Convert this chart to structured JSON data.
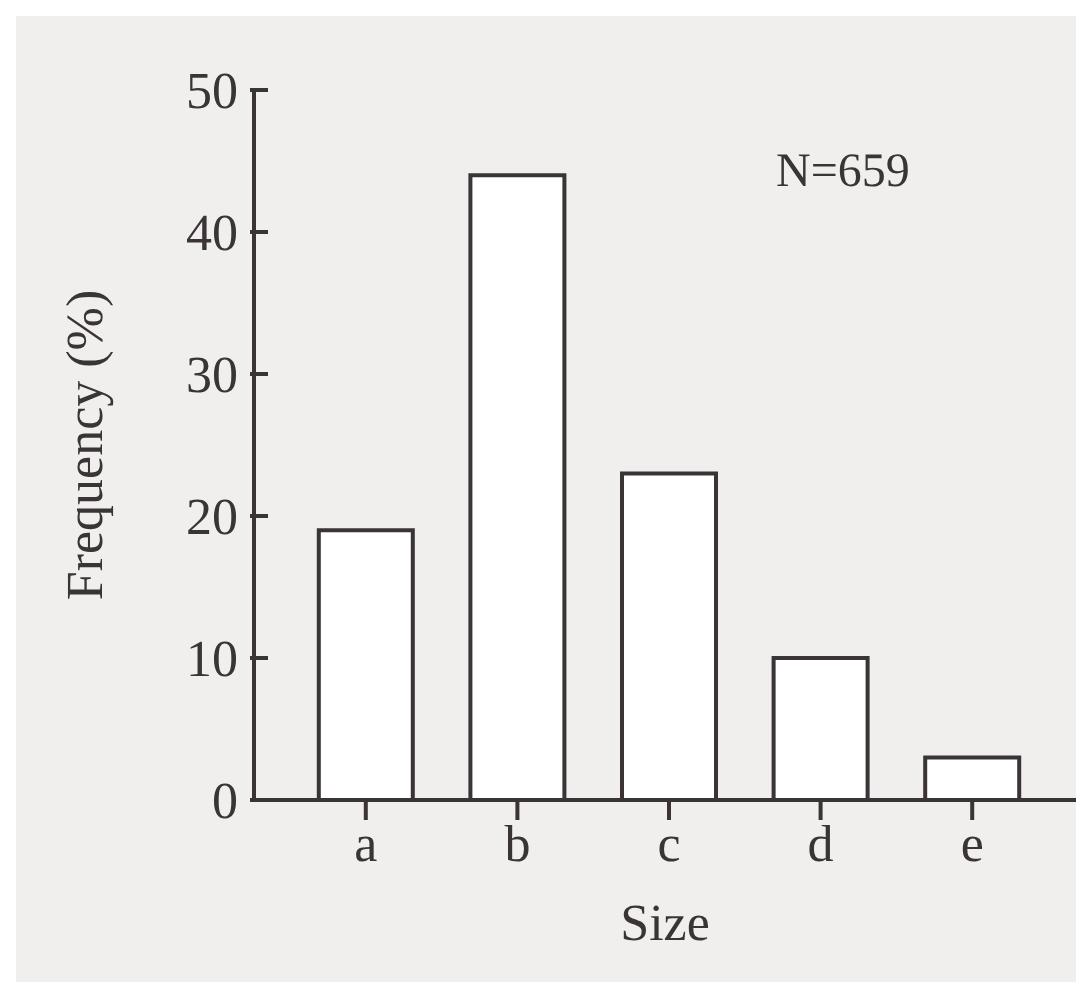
{
  "chart_data": {
    "type": "bar",
    "xlabel": "Size",
    "ylabel": "Frequency (%)",
    "categories": [
      "a",
      "b",
      "c",
      "d",
      "e"
    ],
    "values": [
      19,
      44,
      23,
      10,
      3
    ],
    "color": "#ffffff",
    "ylim": [
      0,
      50
    ],
    "yticks": [
      0,
      10,
      20,
      30,
      40,
      50
    ],
    "annotations": [
      "N=659"
    ]
  }
}
